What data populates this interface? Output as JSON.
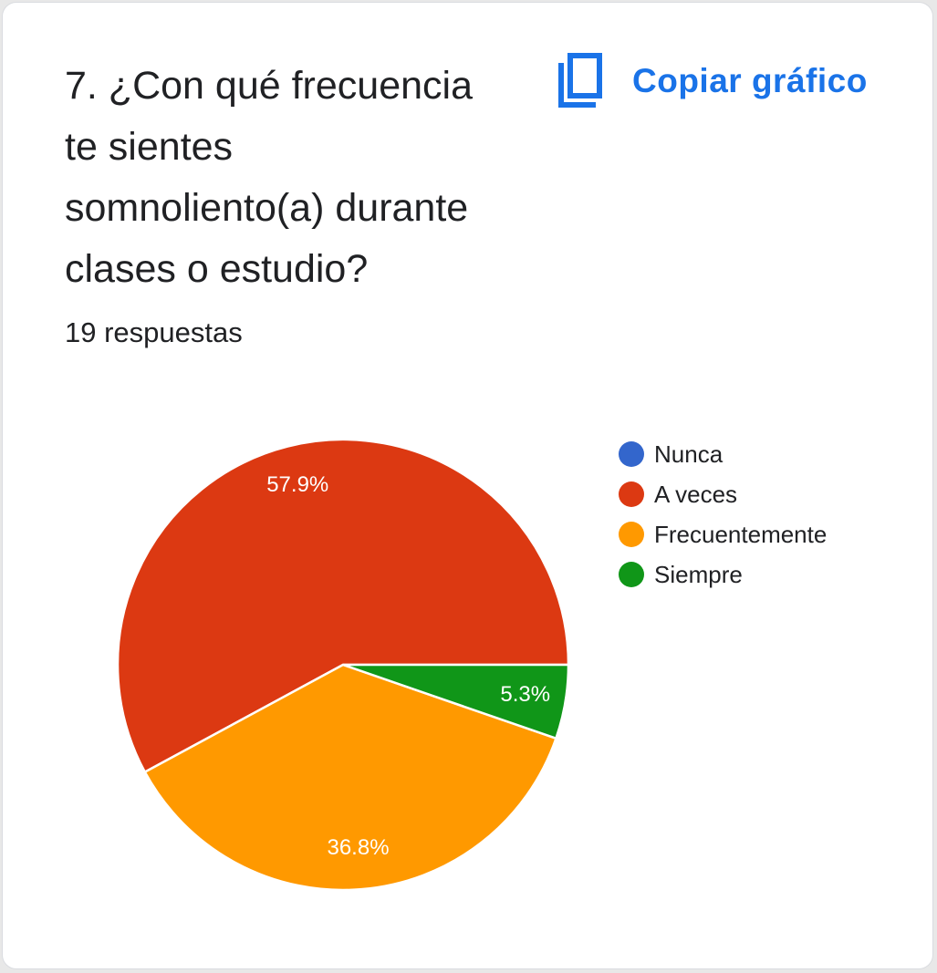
{
  "question": {
    "title": "7. ¿Con qué frecuencia\nte sientes\nsomnoliento(a) durante\nclases o estudio?",
    "responses": "19 respuestas"
  },
  "toolbar": {
    "copy_label": "Copiar gráfico",
    "copy_icon": "copy-icon"
  },
  "chart_data": {
    "type": "pie",
    "title": "",
    "start_angle_deg": 0,
    "direction": "counterclockwise",
    "slices": [
      {
        "name": "Nunca",
        "value": 0,
        "label": "",
        "color": "#3366cc"
      },
      {
        "name": "A veces",
        "value": 57.9,
        "label": "57.9%",
        "color": "#dc3912"
      },
      {
        "name": "Frecuentemente",
        "value": 36.8,
        "label": "36.8%",
        "color": "#ff9900"
      },
      {
        "name": "Siempre",
        "value": 5.3,
        "label": "5.3%",
        "color": "#109618"
      }
    ],
    "legend_position": "right"
  }
}
